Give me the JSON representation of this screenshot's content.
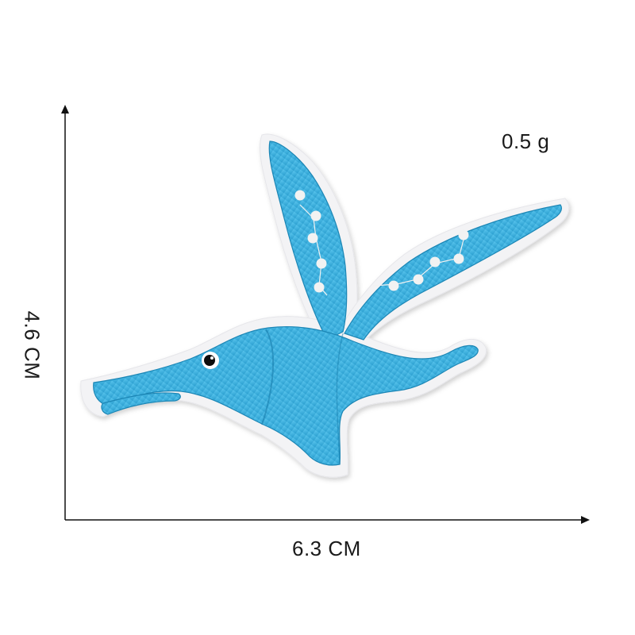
{
  "product": {
    "weight": "0.5 g",
    "width": "6.3 CM",
    "height": "4.6 CM"
  },
  "colors": {
    "stitch_blue": "#3fb3e0",
    "stitch_blue_dark": "#1e8fbd",
    "felt_border": "#f4f4f6",
    "axis": "#111111",
    "eye": "#111111",
    "wing_dots": "#f2f2f2"
  },
  "icons": {
    "patch": "pterodactyl-patch-icon",
    "vertical_arrow": "arrow-up-icon",
    "horizontal_arrow": "arrow-right-icon"
  }
}
